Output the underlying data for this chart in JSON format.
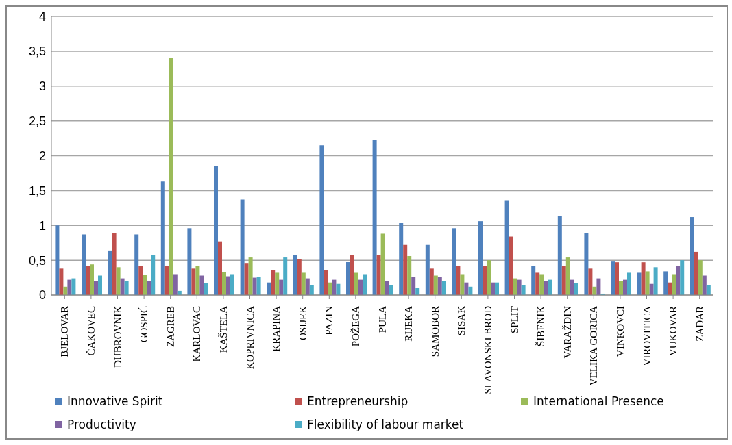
{
  "chart_data": {
    "type": "bar",
    "categories": [
      "BJELOVAR",
      "ČAKOVEC",
      "DUBROVNIK",
      "GOSPIĆ",
      "ZAGREB",
      "KARLOVAC",
      "KAŠTELA",
      "KOPRIVNICA",
      "KRAPINA",
      "OSIJEK",
      "PAZIN",
      "POŽEGA",
      "PULA",
      "RIJEKA",
      "SAMOBOR",
      "SISAK",
      "SLAVONSKI BROD",
      "SPLIT",
      "ŠIBENIK",
      "VARAŽDIN",
      "VELIKA GORICA",
      "VINKOVCI",
      "VIROVITICA",
      "VUKOVAR",
      "ZADAR"
    ],
    "series": [
      {
        "name": "Innovative Spirit",
        "color": "#4f81bd",
        "values": [
          1.0,
          0.87,
          0.64,
          0.87,
          1.63,
          0.96,
          1.85,
          1.37,
          0.18,
          0.58,
          2.15,
          0.48,
          2.23,
          1.04,
          0.72,
          0.96,
          1.06,
          1.36,
          0.42,
          1.14,
          0.89,
          0.49,
          0.32,
          0.34,
          1.12
        ]
      },
      {
        "name": "Entrepreneurship",
        "color": "#c0504d",
        "values": [
          0.38,
          0.42,
          0.89,
          0.42,
          0.42,
          0.38,
          0.77,
          0.46,
          0.36,
          0.52,
          0.36,
          0.58,
          0.58,
          0.72,
          0.38,
          0.42,
          0.42,
          0.84,
          0.32,
          0.42,
          0.38,
          0.47,
          0.47,
          0.18,
          0.62
        ]
      },
      {
        "name": "International Presence",
        "color": "#9bbb59",
        "values": [
          0.12,
          0.44,
          0.4,
          0.29,
          3.41,
          0.42,
          0.33,
          0.54,
          0.32,
          0.32,
          0.18,
          0.32,
          0.88,
          0.56,
          0.28,
          0.3,
          0.5,
          0.24,
          0.3,
          0.54,
          0.12,
          0.2,
          0.34,
          0.3,
          0.5
        ]
      },
      {
        "name": "Productivity",
        "color": "#8064a2",
        "values": [
          0.22,
          0.2,
          0.24,
          0.2,
          0.3,
          0.28,
          0.27,
          0.25,
          0.22,
          0.24,
          0.22,
          0.22,
          0.2,
          0.26,
          0.26,
          0.18,
          0.18,
          0.22,
          0.2,
          0.22,
          0.24,
          0.22,
          0.16,
          0.42,
          0.28
        ]
      },
      {
        "name": "Flexibility of labour market",
        "color": "#4bacc6",
        "values": [
          0.24,
          0.28,
          0.2,
          0.58,
          0.06,
          0.17,
          0.3,
          0.26,
          0.54,
          0.14,
          0.16,
          0.3,
          0.14,
          0.1,
          0.2,
          0.12,
          0.18,
          0.14,
          0.22,
          0.17,
          0.02,
          0.32,
          0.4,
          0.5,
          0.14
        ]
      }
    ],
    "ylim": [
      0,
      4
    ],
    "yticks": [
      0,
      {
        "value": 0.5,
        "label": "0,5"
      },
      1,
      {
        "value": 1.5,
        "label": "1,5"
      },
      2,
      {
        "value": 2.5,
        "label": "2,5"
      },
      3,
      {
        "value": 3.5,
        "label": "3,5"
      },
      4
    ],
    "grid": "y",
    "legend": "bottom"
  }
}
